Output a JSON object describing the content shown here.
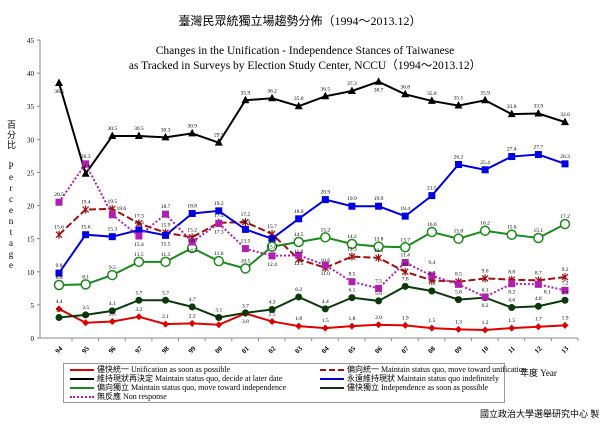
{
  "chart_data": {
    "type": "line",
    "title_zh": "臺灣民眾統獨立場趨勢分佈（1994～2013.12）",
    "title_en_1": "Changes in the Unification - Independence Stances of Taiwanese",
    "title_en_2": "as Tracked in Surveys by Election Study Center, NCCU（1994～2013.12）",
    "ylabel": "百分比 Percentage",
    "xlabel": "年度 Year",
    "credit": "國立政治大學選舉研究中心 製",
    "ylim": [
      0,
      45
    ],
    "yticks": [
      "0",
      "5",
      "10",
      "15",
      "20",
      "25",
      "30",
      "35",
      "40",
      "45"
    ],
    "x": [
      "94",
      "95",
      "96",
      "97",
      "98",
      "99",
      "00",
      "01",
      "02",
      "03",
      "04",
      "05",
      "06",
      "07",
      "08",
      "09",
      "10",
      "11",
      "12",
      "13"
    ],
    "series": [
      {
        "name": "儘快統一 Unification as soon as possible",
        "color": "#e00000",
        "marker": "diamond",
        "dash": "",
        "values": [
          4.4,
          2.3,
          2.5,
          3.2,
          2.1,
          2.2,
          2.0,
          3.7,
          2.5,
          1.8,
          1.5,
          1.8,
          2.0,
          1.9,
          1.5,
          1.3,
          1.2,
          1.5,
          1.7,
          1.9
        ]
      },
      {
        "name": "偏向統一 Maintain status quo, move toward unification",
        "color": "#a01010",
        "marker": "x",
        "dash": "7,3",
        "values": [
          15.6,
          19.4,
          19.5,
          17.3,
          15.9,
          15.2,
          17.4,
          17.5,
          15.7,
          11.9,
          10.6,
          12.3,
          12.1,
          10.0,
          8.7,
          8.5,
          9.0,
          8.8,
          8.7,
          9.2
        ]
      },
      {
        "name": "維持現狀再決定 Maintain status quo, decide at later date",
        "color": "#000000",
        "marker": "triangle",
        "dash": "",
        "values": [
          38.5,
          24.8,
          30.5,
          30.5,
          30.3,
          30.9,
          29.5,
          35.9,
          36.2,
          35.0,
          36.5,
          37.3,
          38.7,
          36.8,
          35.8,
          35.1,
          35.9,
          33.8,
          33.9,
          32.6
        ]
      },
      {
        "name": "永遠維持現狀 Maintain status quo indefinitely",
        "color": "#0000e0",
        "marker": "square",
        "dash": "",
        "values": [
          9.8,
          15.6,
          15.3,
          16.3,
          15.5,
          18.8,
          19.2,
          16.4,
          15.0,
          18.0,
          20.9,
          19.9,
          19.9,
          18.4,
          21.5,
          26.2,
          25.4,
          27.4,
          27.7,
          26.3
        ]
      },
      {
        "name": "偏向獨立 Maintain status quo, move toward independence",
        "color": "#1a8a1a",
        "marker": "circle-open",
        "dash": "",
        "values": [
          8.0,
          8.1,
          9.5,
          11.5,
          11.5,
          13.6,
          11.6,
          10.5,
          13.8,
          14.5,
          15.2,
          14.2,
          13.8,
          13.7,
          16.0,
          15.0,
          16.2,
          15.6,
          15.1,
          17.2
        ]
      },
      {
        "name": "儘快獨立 Independence as soon as possible",
        "color": "#0a3a0a",
        "marker": "circle",
        "dash": "",
        "values": [
          3.1,
          3.5,
          4.1,
          5.7,
          5.7,
          4.7,
          3.1,
          3.8,
          4.3,
          6.2,
          4.4,
          6.1,
          5.6,
          7.8,
          7.1,
          5.8,
          6.1,
          4.6,
          4.8,
          5.7
        ]
      },
      {
        "name": "無反應 Non response",
        "color": "#b020b0",
        "marker": "square",
        "dash": "2,2",
        "values": [
          20.5,
          26.3,
          18.6,
          15.4,
          18.7,
          14.5,
          17.3,
          13.5,
          12.4,
          12.5,
          11.0,
          8.5,
          7.5,
          11.4,
          9.4,
          8.1,
          6.2,
          8.2,
          8.1,
          7.2
        ]
      }
    ]
  }
}
